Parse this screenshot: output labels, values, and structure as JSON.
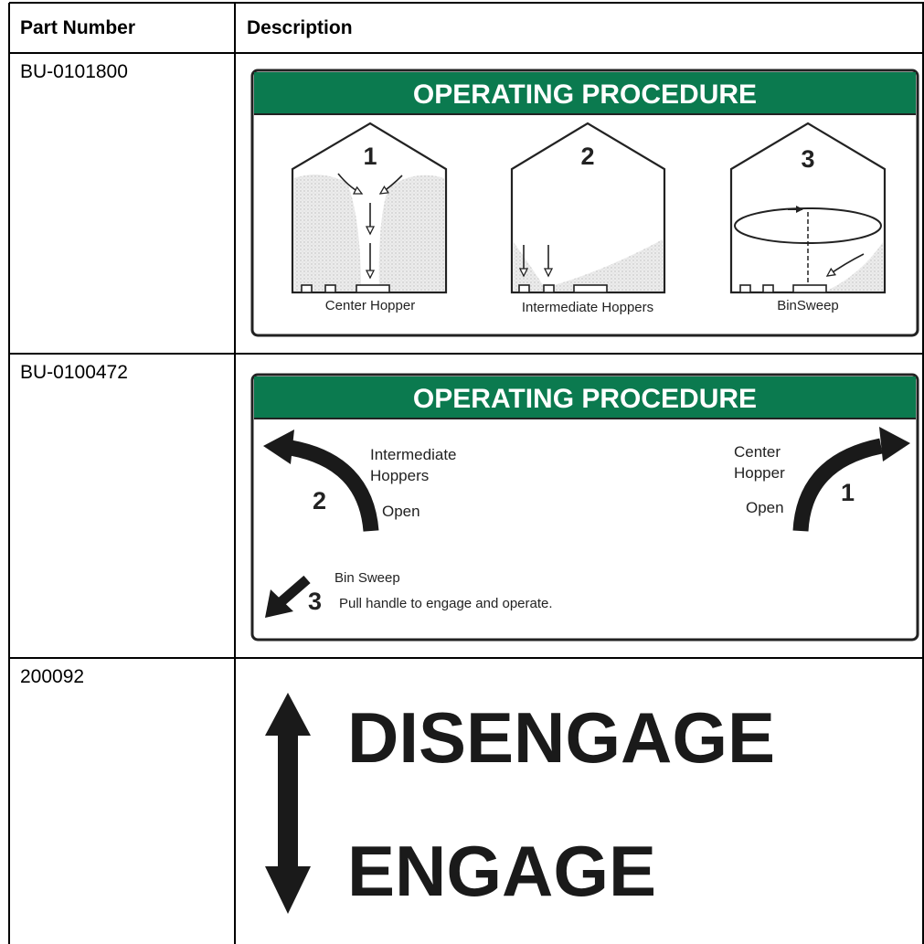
{
  "table": {
    "headers": [
      "Part Number",
      "Description"
    ],
    "rows": [
      {
        "part_number": "BU-0101800",
        "decal": {
          "title": "OPERATING PROCEDURE",
          "steps": [
            {
              "number": "1",
              "caption": "Center Hopper"
            },
            {
              "number": "2",
              "caption": "Intermediate Hoppers"
            },
            {
              "number": "3",
              "caption": "BinSweep"
            }
          ]
        }
      },
      {
        "part_number": "BU-0100472",
        "decal": {
          "title": "OPERATING PROCEDURE",
          "steps": [
            {
              "number": "2",
              "label": [
                "Intermediate",
                "Hoppers"
              ],
              "action": "Open"
            },
            {
              "number": "1",
              "label": [
                "Center",
                "Hopper"
              ],
              "action": "Open"
            },
            {
              "number": "3",
              "label": [
                "Bin Sweep"
              ],
              "action": "Pull handle to engage and operate."
            }
          ]
        }
      },
      {
        "part_number": "200092",
        "decal": {
          "top": "DISENGAGE",
          "bottom": "ENGAGE"
        }
      }
    ]
  }
}
